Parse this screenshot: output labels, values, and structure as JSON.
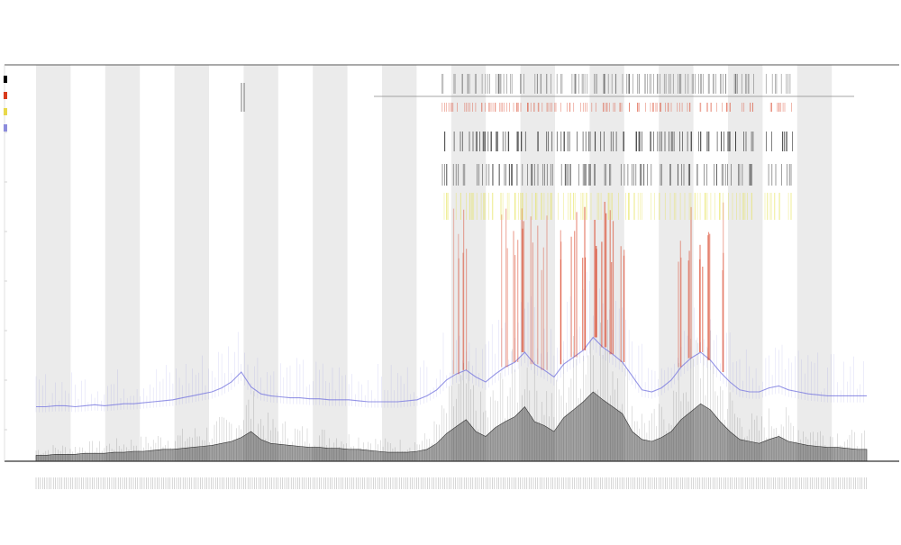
{
  "chart_data": {
    "type": "area",
    "title": "",
    "xlabel": "",
    "ylabel": "",
    "grid": false,
    "legend_position": "top-left",
    "legend_swatches": [
      "#000000",
      "#d83a1c",
      "#e8d84a",
      "#8c8cdc"
    ],
    "colors": {
      "depth_fill": "#555555",
      "upper_trace": "#7a7ae0",
      "hotspot": "#d83a1c",
      "highlight": "#e6e24a",
      "band": "#ebebeb",
      "axis": "#777777"
    },
    "series": [
      {
        "values": [
          6,
          6,
          7,
          7,
          7,
          8,
          8,
          8,
          9,
          9,
          10,
          10,
          11,
          12,
          12,
          13,
          14,
          15,
          16,
          18,
          20,
          24,
          30,
          22,
          18,
          17,
          16,
          15,
          14,
          14,
          13,
          13,
          12,
          12,
          11,
          10,
          9,
          9,
          9,
          10,
          12,
          18,
          28,
          35,
          42,
          30,
          25,
          34,
          40,
          45,
          55,
          40,
          36,
          30,
          44,
          52,
          60,
          70,
          62,
          55,
          48,
          30,
          22,
          20,
          24,
          30,
          42,
          50,
          58,
          52,
          40,
          30,
          22,
          20,
          18,
          22,
          25,
          20,
          18,
          16,
          15,
          14,
          14,
          13,
          12,
          12
        ]
      },
      {
        "values": [
          55,
          55,
          56,
          56,
          55,
          56,
          57,
          56,
          57,
          58,
          58,
          59,
          60,
          61,
          62,
          64,
          66,
          68,
          70,
          74,
          80,
          90,
          75,
          68,
          66,
          65,
          64,
          64,
          63,
          63,
          62,
          62,
          62,
          61,
          60,
          60,
          60,
          60,
          61,
          62,
          66,
          72,
          82,
          88,
          92,
          85,
          80,
          88,
          95,
          100,
          110,
          98,
          92,
          85,
          98,
          105,
          112,
          125,
          115,
          108,
          100,
          86,
          72,
          70,
          74,
          82,
          95,
          104,
          110,
          102,
          90,
          80,
          72,
          70,
          70,
          74,
          76,
          72,
          70,
          68,
          67,
          66,
          66,
          66,
          66,
          66
        ]
      }
    ]
  }
}
